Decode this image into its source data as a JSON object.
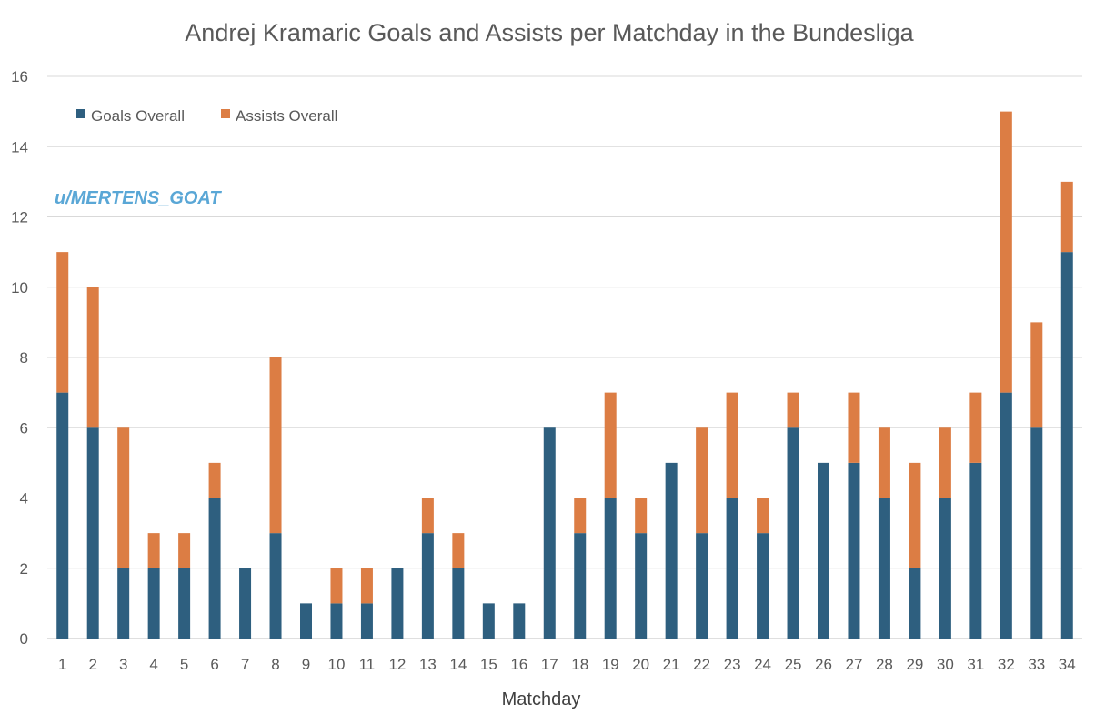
{
  "chart_data": {
    "type": "bar",
    "stacked": true,
    "title": "Andrej Kramaric Goals and Assists per Matchday in the Bundesliga",
    "xlabel": "Matchday",
    "ylabel": "",
    "ylim": [
      0,
      16
    ],
    "yticks": [
      0,
      2,
      4,
      6,
      8,
      10,
      12,
      14,
      16
    ],
    "grid": true,
    "legend_position": "top-left",
    "categories": [
      "1",
      "2",
      "3",
      "4",
      "5",
      "6",
      "7",
      "8",
      "9",
      "10",
      "11",
      "12",
      "13",
      "14",
      "15",
      "16",
      "17",
      "18",
      "19",
      "20",
      "21",
      "22",
      "23",
      "24",
      "25",
      "26",
      "27",
      "28",
      "29",
      "30",
      "31",
      "32",
      "33",
      "34"
    ],
    "series": [
      {
        "name": "Goals Overall",
        "color": "#2e5f7f",
        "values": [
          7,
          6,
          2,
          2,
          2,
          4,
          2,
          3,
          1,
          1,
          1,
          2,
          3,
          2,
          1,
          1,
          6,
          3,
          4,
          3,
          5,
          3,
          4,
          3,
          6,
          5,
          5,
          4,
          2,
          4,
          5,
          7,
          6,
          11
        ]
      },
      {
        "name": "Assists Overall",
        "color": "#dc7d44",
        "values": [
          4,
          4,
          4,
          1,
          1,
          1,
          0,
          5,
          0,
          1,
          1,
          0,
          1,
          1,
          0,
          0,
          0,
          1,
          3,
          1,
          0,
          3,
          3,
          1,
          1,
          0,
          2,
          2,
          3,
          2,
          2,
          8,
          3,
          2
        ]
      }
    ],
    "annotation": "u/MERTENS_GOAT"
  }
}
